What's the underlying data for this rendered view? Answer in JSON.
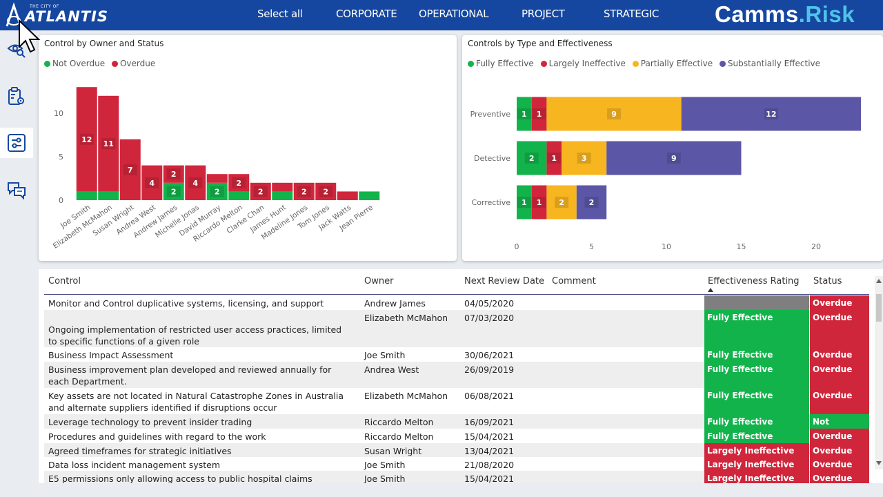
{
  "header": {
    "logo_small": "THE CITY OF",
    "logo_big": "ATLANTIS",
    "nav": [
      "Select all",
      "CORPORATE",
      "OPERATIONAL",
      "PROJECT",
      "STRATEGIC"
    ],
    "brand_main": "Camms",
    "brand_dot": ".",
    "brand_suffix": "Risk"
  },
  "sidebar": {
    "items": [
      "eye-search-icon",
      "clipboard-settings-icon",
      "sliders-icon",
      "chat-bubbles-icon"
    ],
    "active_index": 2
  },
  "colors": {
    "header": "#1547a0",
    "green": "#13b34b",
    "red": "#d0263c",
    "yellow": "#f7b520",
    "purple": "#5b57a6",
    "grey": "#7f7f7f"
  },
  "chart_left": {
    "title": "Control by Owner and Status",
    "legend": [
      "Not Overdue",
      "Overdue"
    ]
  },
  "chart_right": {
    "title": "Controls by Type and Effectiveness",
    "legend": [
      "Fully Effective",
      "Largely Ineffective",
      "Partially Effective",
      "Substantially Effective"
    ]
  },
  "chart_data": [
    {
      "type": "bar",
      "stacked": true,
      "title": "Control by Owner and Status",
      "categories": [
        "Joe Smith",
        "Elizabeth McMahon",
        "Susan Wright",
        "Andrea West",
        "Andrew James",
        "Michelle Jonas",
        "David Murray",
        "Riccardo Melton",
        "Clarke Chan",
        "James Hunt",
        "Madeline Jones",
        "Tom Jones",
        "Jack Watts",
        "Jean Pierre"
      ],
      "series": [
        {
          "name": "Not Overdue",
          "values": [
            1,
            1,
            0,
            0,
            2,
            0,
            2,
            1,
            0,
            1,
            0,
            0,
            0,
            1
          ]
        },
        {
          "name": "Overdue",
          "values": [
            12,
            11,
            7,
            4,
            2,
            4,
            1,
            2,
            2,
            1,
            2,
            2,
            1,
            0
          ]
        }
      ],
      "data_labels": {
        "Not Overdue": [
          "",
          "",
          "",
          "",
          "2",
          "",
          "2",
          "",
          "",
          "",
          "",
          "",
          "",
          ""
        ],
        "Overdue": [
          "12",
          "11",
          "7",
          "4",
          "2",
          "4",
          "",
          "2",
          "2",
          "",
          "2",
          "2",
          "",
          ""
        ]
      },
      "yticks": [
        0,
        5,
        10
      ],
      "ylim": [
        0,
        14
      ],
      "legend_position": "top-left"
    },
    {
      "type": "bar",
      "orientation": "horizontal",
      "stacked": true,
      "title": "Controls by Type and Effectiveness",
      "categories": [
        "Preventive",
        "Detective",
        "Corrective"
      ],
      "series": [
        {
          "name": "Fully Effective",
          "values": [
            1,
            2,
            1
          ]
        },
        {
          "name": "Largely Ineffective",
          "values": [
            1,
            1,
            1
          ]
        },
        {
          "name": "Partially Effective",
          "values": [
            9,
            3,
            2
          ]
        },
        {
          "name": "Substantially Effective",
          "values": [
            12,
            9,
            2
          ]
        }
      ],
      "xticks": [
        0,
        5,
        10,
        15,
        20
      ],
      "xlim": [
        0,
        23
      ],
      "legend_position": "top-left"
    }
  ],
  "table": {
    "headers": [
      "Control",
      "Owner",
      "Next Review Date",
      "Comment",
      "Effectiveness Rating",
      "Status"
    ],
    "rows": [
      {
        "control": "Monitor and Control duplicative systems, licensing, and support issues.",
        "owner": "Andrew James",
        "date": "04/05/2020",
        "comment": "",
        "rating": "",
        "status": "Overdue"
      },
      {
        "control": "Ongoing implementation of restricted user access practices, limited to specific functions of a given role",
        "owner": "Elizabeth McMahon",
        "date": "07/03/2020",
        "comment": "",
        "rating": "Fully Effective",
        "status": "Overdue"
      },
      {
        "control": "Business Impact Assessment",
        "owner": "Joe Smith",
        "date": "30/06/2021",
        "comment": "",
        "rating": "Fully Effective",
        "status": "Overdue"
      },
      {
        "control": "Business improvement plan developed and reviewed annually for each Department.",
        "owner": "Andrea West",
        "date": "26/09/2019",
        "comment": "",
        "rating": "Fully Effective",
        "status": "Overdue"
      },
      {
        "control": "Key assets are not located in Natural Catastrophe Zones in Australia and alternate suppliers identified if disruptions occur",
        "owner": "Elizabeth McMahon",
        "date": "06/08/2021",
        "comment": "",
        "rating": "Fully Effective",
        "status": "Overdue"
      },
      {
        "control": "Leverage technology to prevent insider trading",
        "owner": "Riccardo Melton",
        "date": "16/09/2021",
        "comment": "",
        "rating": "Fully Effective",
        "status": "Not Overdue"
      },
      {
        "control": "Procedures and guidelines with regard to the work",
        "owner": "Riccardo Melton",
        "date": "15/04/2021",
        "comment": "",
        "rating": "Fully Effective",
        "status": "Overdue"
      },
      {
        "control": "Agreed timeframes for strategic initiatives",
        "owner": "Susan Wright",
        "date": "13/04/2021",
        "comment": "",
        "rating": "Largely Ineffective",
        "status": "Overdue"
      },
      {
        "control": "Data loss incident management system",
        "owner": "Joe Smith",
        "date": "21/08/2020",
        "comment": "",
        "rating": "Largely Ineffective",
        "status": "Overdue"
      },
      {
        "control": "E5 permissions only allowing access to public hospital claims",
        "owner": "Joe Smith",
        "date": "15/04/2021",
        "comment": "",
        "rating": "Largely Ineffective",
        "status": "Overdue"
      }
    ]
  }
}
